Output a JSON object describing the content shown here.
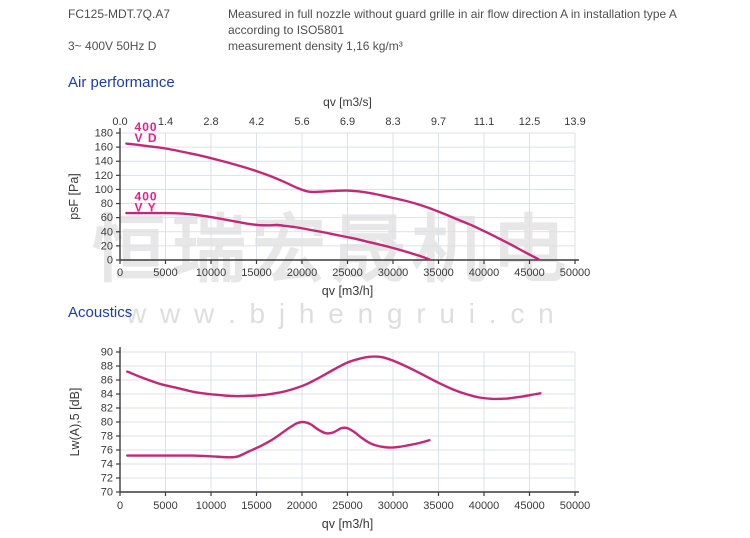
{
  "header": {
    "model": "FC125-MDT.7Q.A7",
    "note": "Measured in full nozzle without guard grille in air flow direction A in installation type A according to ISO5801",
    "power": "3~ 400V 50Hz D",
    "density": "measurement density 1,16 kg/m³"
  },
  "sections": {
    "air_performance": "Air performance",
    "acoustics": "Acoustics"
  },
  "watermark": {
    "text_cn": "恒瑞宏晟机电",
    "text_url": "w w w . b j h e n g r u i . c n"
  },
  "colors": {
    "heading_blue": "#1d3cad",
    "curve": "#c32878",
    "series_label": "#e0218a",
    "grid": "#dce1e9",
    "axis": "#3c3c3c",
    "tick_text": "#3a3a3a"
  },
  "chart_data": [
    {
      "id": "air",
      "type": "line",
      "title": "Air performance",
      "xlabel": "qv [m3/h]",
      "xlabel_top": "qv [m3/s]",
      "ylabel": "psF [Pa]",
      "xlim": [
        0,
        50000
      ],
      "ylim": [
        0,
        180
      ],
      "grid": true,
      "xticks": [
        0,
        5000,
        10000,
        15000,
        20000,
        25000,
        30000,
        35000,
        40000,
        45000,
        50000
      ],
      "xtick_labels": [
        "0",
        "5000",
        "10000",
        "15000",
        "20000",
        "25000",
        "30000",
        "35000",
        "40000",
        "45000",
        "50000"
      ],
      "xticks_top_labels": [
        "0.0",
        "1.4",
        "2.8",
        "4.2",
        "5.6",
        "6.9",
        "8.3",
        "9.7",
        "11.1",
        "12.5",
        "13.9"
      ],
      "yticks": [
        0,
        20,
        40,
        60,
        80,
        100,
        120,
        140,
        160,
        180
      ],
      "series": [
        {
          "name": "400 V D",
          "label": [
            "400",
            "V D"
          ],
          "label_pos": [
            1600,
            183
          ],
          "points": [
            [
              700,
              165
            ],
            [
              3000,
              161.5
            ],
            [
              5000,
              158
            ],
            [
              7000,
              153
            ],
            [
              9000,
              147.5
            ],
            [
              11000,
              141
            ],
            [
              13000,
              134
            ],
            [
              15000,
              126
            ],
            [
              16500,
              119
            ],
            [
              18000,
              111
            ],
            [
              19500,
              102
            ],
            [
              20700,
              97
            ],
            [
              22000,
              96.8
            ],
            [
              23500,
              98
            ],
            [
              25000,
              98.3
            ],
            [
              26500,
              96.8
            ],
            [
              28000,
              93.5
            ],
            [
              29500,
              89.5
            ],
            [
              31000,
              85
            ],
            [
              32500,
              80
            ],
            [
              34000,
              73.5
            ],
            [
              35500,
              66
            ],
            [
              37000,
              58
            ],
            [
              38500,
              50
            ],
            [
              40000,
              41
            ],
            [
              41500,
              31.5
            ],
            [
              43000,
              21.5
            ],
            [
              44500,
              11
            ],
            [
              46000,
              1
            ]
          ]
        },
        {
          "name": "400 V Y",
          "label": [
            "400",
            "V Y"
          ],
          "label_pos": [
            1600,
            84
          ],
          "points": [
            [
              700,
              66.5
            ],
            [
              3000,
              66.5
            ],
            [
              5000,
              66.5
            ],
            [
              6500,
              66
            ],
            [
              8000,
              64.5
            ],
            [
              9500,
              62
            ],
            [
              11000,
              58.5
            ],
            [
              12500,
              55
            ],
            [
              14000,
              51.5
            ],
            [
              15200,
              49.5
            ],
            [
              16300,
              49.2
            ],
            [
              17300,
              49.6
            ],
            [
              18300,
              48
            ],
            [
              19500,
              46
            ],
            [
              21000,
              42.5
            ],
            [
              22500,
              39
            ],
            [
              24000,
              35
            ],
            [
              25500,
              31
            ],
            [
              27000,
              26.5
            ],
            [
              28500,
              22
            ],
            [
              30000,
              17
            ],
            [
              31500,
              11.5
            ],
            [
              33000,
              5.5
            ],
            [
              34000,
              0.8
            ]
          ]
        }
      ]
    },
    {
      "id": "acoustics",
      "type": "line",
      "title": "Acoustics",
      "xlabel": "qv [m3/h]",
      "ylabel": "Lw(A),5 [dB]",
      "xlim": [
        0,
        50000
      ],
      "ylim": [
        70,
        90
      ],
      "grid": true,
      "xticks": [
        0,
        5000,
        10000,
        15000,
        20000,
        25000,
        30000,
        35000,
        40000,
        45000,
        50000
      ],
      "xtick_labels": [
        "0",
        "5000",
        "10000",
        "15000",
        "20000",
        "25000",
        "30000",
        "35000",
        "40000",
        "45000",
        "50000"
      ],
      "yticks": [
        70,
        72,
        74,
        76,
        78,
        80,
        82,
        84,
        86,
        88,
        90
      ],
      "series": [
        {
          "label": [],
          "points": [
            [
              800,
              87.2
            ],
            [
              2500,
              86.3
            ],
            [
              4500,
              85.4
            ],
            [
              6500,
              84.8
            ],
            [
              8500,
              84.2
            ],
            [
              10500,
              83.9
            ],
            [
              12500,
              83.7
            ],
            [
              14500,
              83.75
            ],
            [
              16000,
              83.9
            ],
            [
              17500,
              84.2
            ],
            [
              19000,
              84.7
            ],
            [
              20500,
              85.4
            ],
            [
              22000,
              86.4
            ],
            [
              23500,
              87.5
            ],
            [
              25000,
              88.5
            ],
            [
              26500,
              89.1
            ],
            [
              27800,
              89.35
            ],
            [
              29000,
              89.2
            ],
            [
              30500,
              88.5
            ],
            [
              32000,
              87.6
            ],
            [
              33500,
              86.6
            ],
            [
              35000,
              85.6
            ],
            [
              36500,
              84.7
            ],
            [
              38000,
              84.0
            ],
            [
              39500,
              83.5
            ],
            [
              41000,
              83.3
            ],
            [
              42500,
              83.35
            ],
            [
              44000,
              83.6
            ],
            [
              45300,
              83.9
            ],
            [
              46200,
              84.1
            ]
          ]
        },
        {
          "label": [],
          "points": [
            [
              800,
              75.2
            ],
            [
              3000,
              75.2
            ],
            [
              5500,
              75.2
            ],
            [
              8000,
              75.2
            ],
            [
              10000,
              75.1
            ],
            [
              12000,
              74.95
            ],
            [
              13000,
              75.1
            ],
            [
              14000,
              75.7
            ],
            [
              15500,
              76.6
            ],
            [
              17000,
              77.7
            ],
            [
              18300,
              78.9
            ],
            [
              19400,
              79.8
            ],
            [
              20100,
              80.0
            ],
            [
              20900,
              79.7
            ],
            [
              21800,
              78.9
            ],
            [
              22600,
              78.4
            ],
            [
              23400,
              78.5
            ],
            [
              24300,
              79.1
            ],
            [
              24900,
              79.15
            ],
            [
              25700,
              78.6
            ],
            [
              26600,
              77.7
            ],
            [
              27600,
              76.9
            ],
            [
              28600,
              76.5
            ],
            [
              29600,
              76.35
            ],
            [
              30700,
              76.45
            ],
            [
              31800,
              76.7
            ],
            [
              32900,
              77.0
            ],
            [
              34000,
              77.4
            ]
          ]
        }
      ]
    }
  ]
}
